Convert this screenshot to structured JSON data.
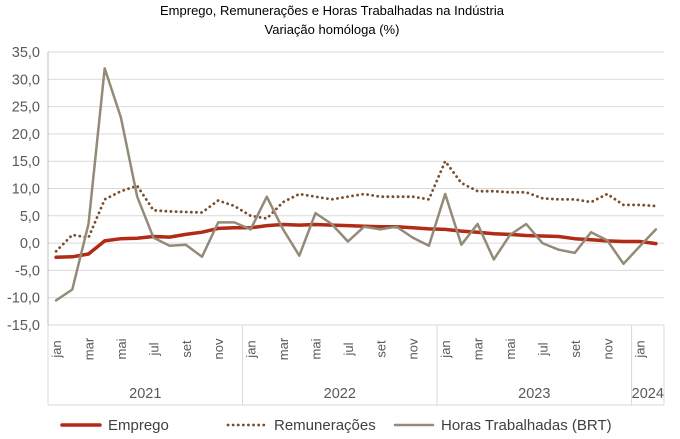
{
  "chart_data": {
    "type": "line",
    "title": "Emprego, Remunerações e Horas Trabalhadas na Indústria",
    "subtitle": "Variação homóloga (%)",
    "ylim": [
      -15,
      35
    ],
    "ytick_labels": [
      "-15,0",
      "-10,0",
      "-5,0",
      "0,0",
      "5,0",
      "10,0",
      "15,0",
      "20,0",
      "25,0",
      "30,0",
      "35,0"
    ],
    "x": [
      "2021-01",
      "2021-02",
      "2021-03",
      "2021-04",
      "2021-05",
      "2021-06",
      "2021-07",
      "2021-08",
      "2021-09",
      "2021-10",
      "2021-11",
      "2021-12",
      "2022-01",
      "2022-02",
      "2022-03",
      "2022-04",
      "2022-05",
      "2022-06",
      "2022-07",
      "2022-08",
      "2022-09",
      "2022-10",
      "2022-11",
      "2022-12",
      "2023-01",
      "2023-02",
      "2023-03",
      "2023-04",
      "2023-05",
      "2023-06",
      "2023-07",
      "2023-08",
      "2023-09",
      "2023-10",
      "2023-11",
      "2023-12",
      "2024-01",
      "2024-02"
    ],
    "x_tick_labels": [
      "jan",
      "mar",
      "mai",
      "jul",
      "set",
      "nov",
      "jan",
      "mar",
      "mai",
      "jul",
      "set",
      "nov",
      "jan",
      "mar",
      "mai",
      "jul",
      "set",
      "nov",
      "jan"
    ],
    "years": [
      "2021",
      "2022",
      "2023",
      "2024"
    ],
    "grid": true,
    "legend_position": "bottom",
    "series": [
      {
        "name": "Emprego",
        "color": "#b22b14",
        "style": "solid",
        "values": [
          -2.6,
          -2.5,
          -2.0,
          0.4,
          0.8,
          0.9,
          1.2,
          1.1,
          1.6,
          2.0,
          2.7,
          2.8,
          2.8,
          3.2,
          3.4,
          3.3,
          3.4,
          3.3,
          3.2,
          3.1,
          3.0,
          3.0,
          2.8,
          2.6,
          2.5,
          2.2,
          2.0,
          1.7,
          1.6,
          1.4,
          1.3,
          1.2,
          0.8,
          0.6,
          0.4,
          0.3,
          0.3,
          -0.1
        ]
      },
      {
        "name": "Remunerações",
        "color": "#7b4f2c",
        "style": "dotted",
        "values": [
          -1.5,
          1.5,
          1.0,
          8.0,
          9.5,
          10.5,
          6.0,
          5.8,
          5.7,
          5.6,
          7.8,
          6.8,
          5.0,
          4.5,
          7.5,
          9.0,
          8.5,
          8.0,
          8.5,
          9.0,
          8.5,
          8.5,
          8.5,
          8.0,
          15.0,
          11.0,
          9.5,
          9.5,
          9.3,
          9.3,
          8.2,
          8.0,
          8.0,
          7.5,
          9.0,
          7.0,
          7.0,
          6.8
        ]
      },
      {
        "name": "Horas Trabalhadas (BRT)",
        "color": "#948a78",
        "style": "solid",
        "values": [
          -10.5,
          -8.5,
          3.5,
          32.0,
          23.0,
          8.5,
          1.0,
          -0.5,
          -0.3,
          -2.5,
          3.8,
          3.8,
          2.5,
          8.5,
          2.5,
          -2.3,
          5.5,
          3.5,
          0.3,
          3.0,
          2.5,
          3.0,
          1.0,
          -0.5,
          9.0,
          -0.3,
          3.5,
          -3.0,
          1.5,
          3.5,
          0.0,
          -1.2,
          -1.8,
          2.0,
          0.5,
          -3.8,
          -0.6,
          2.5
        ]
      }
    ]
  }
}
